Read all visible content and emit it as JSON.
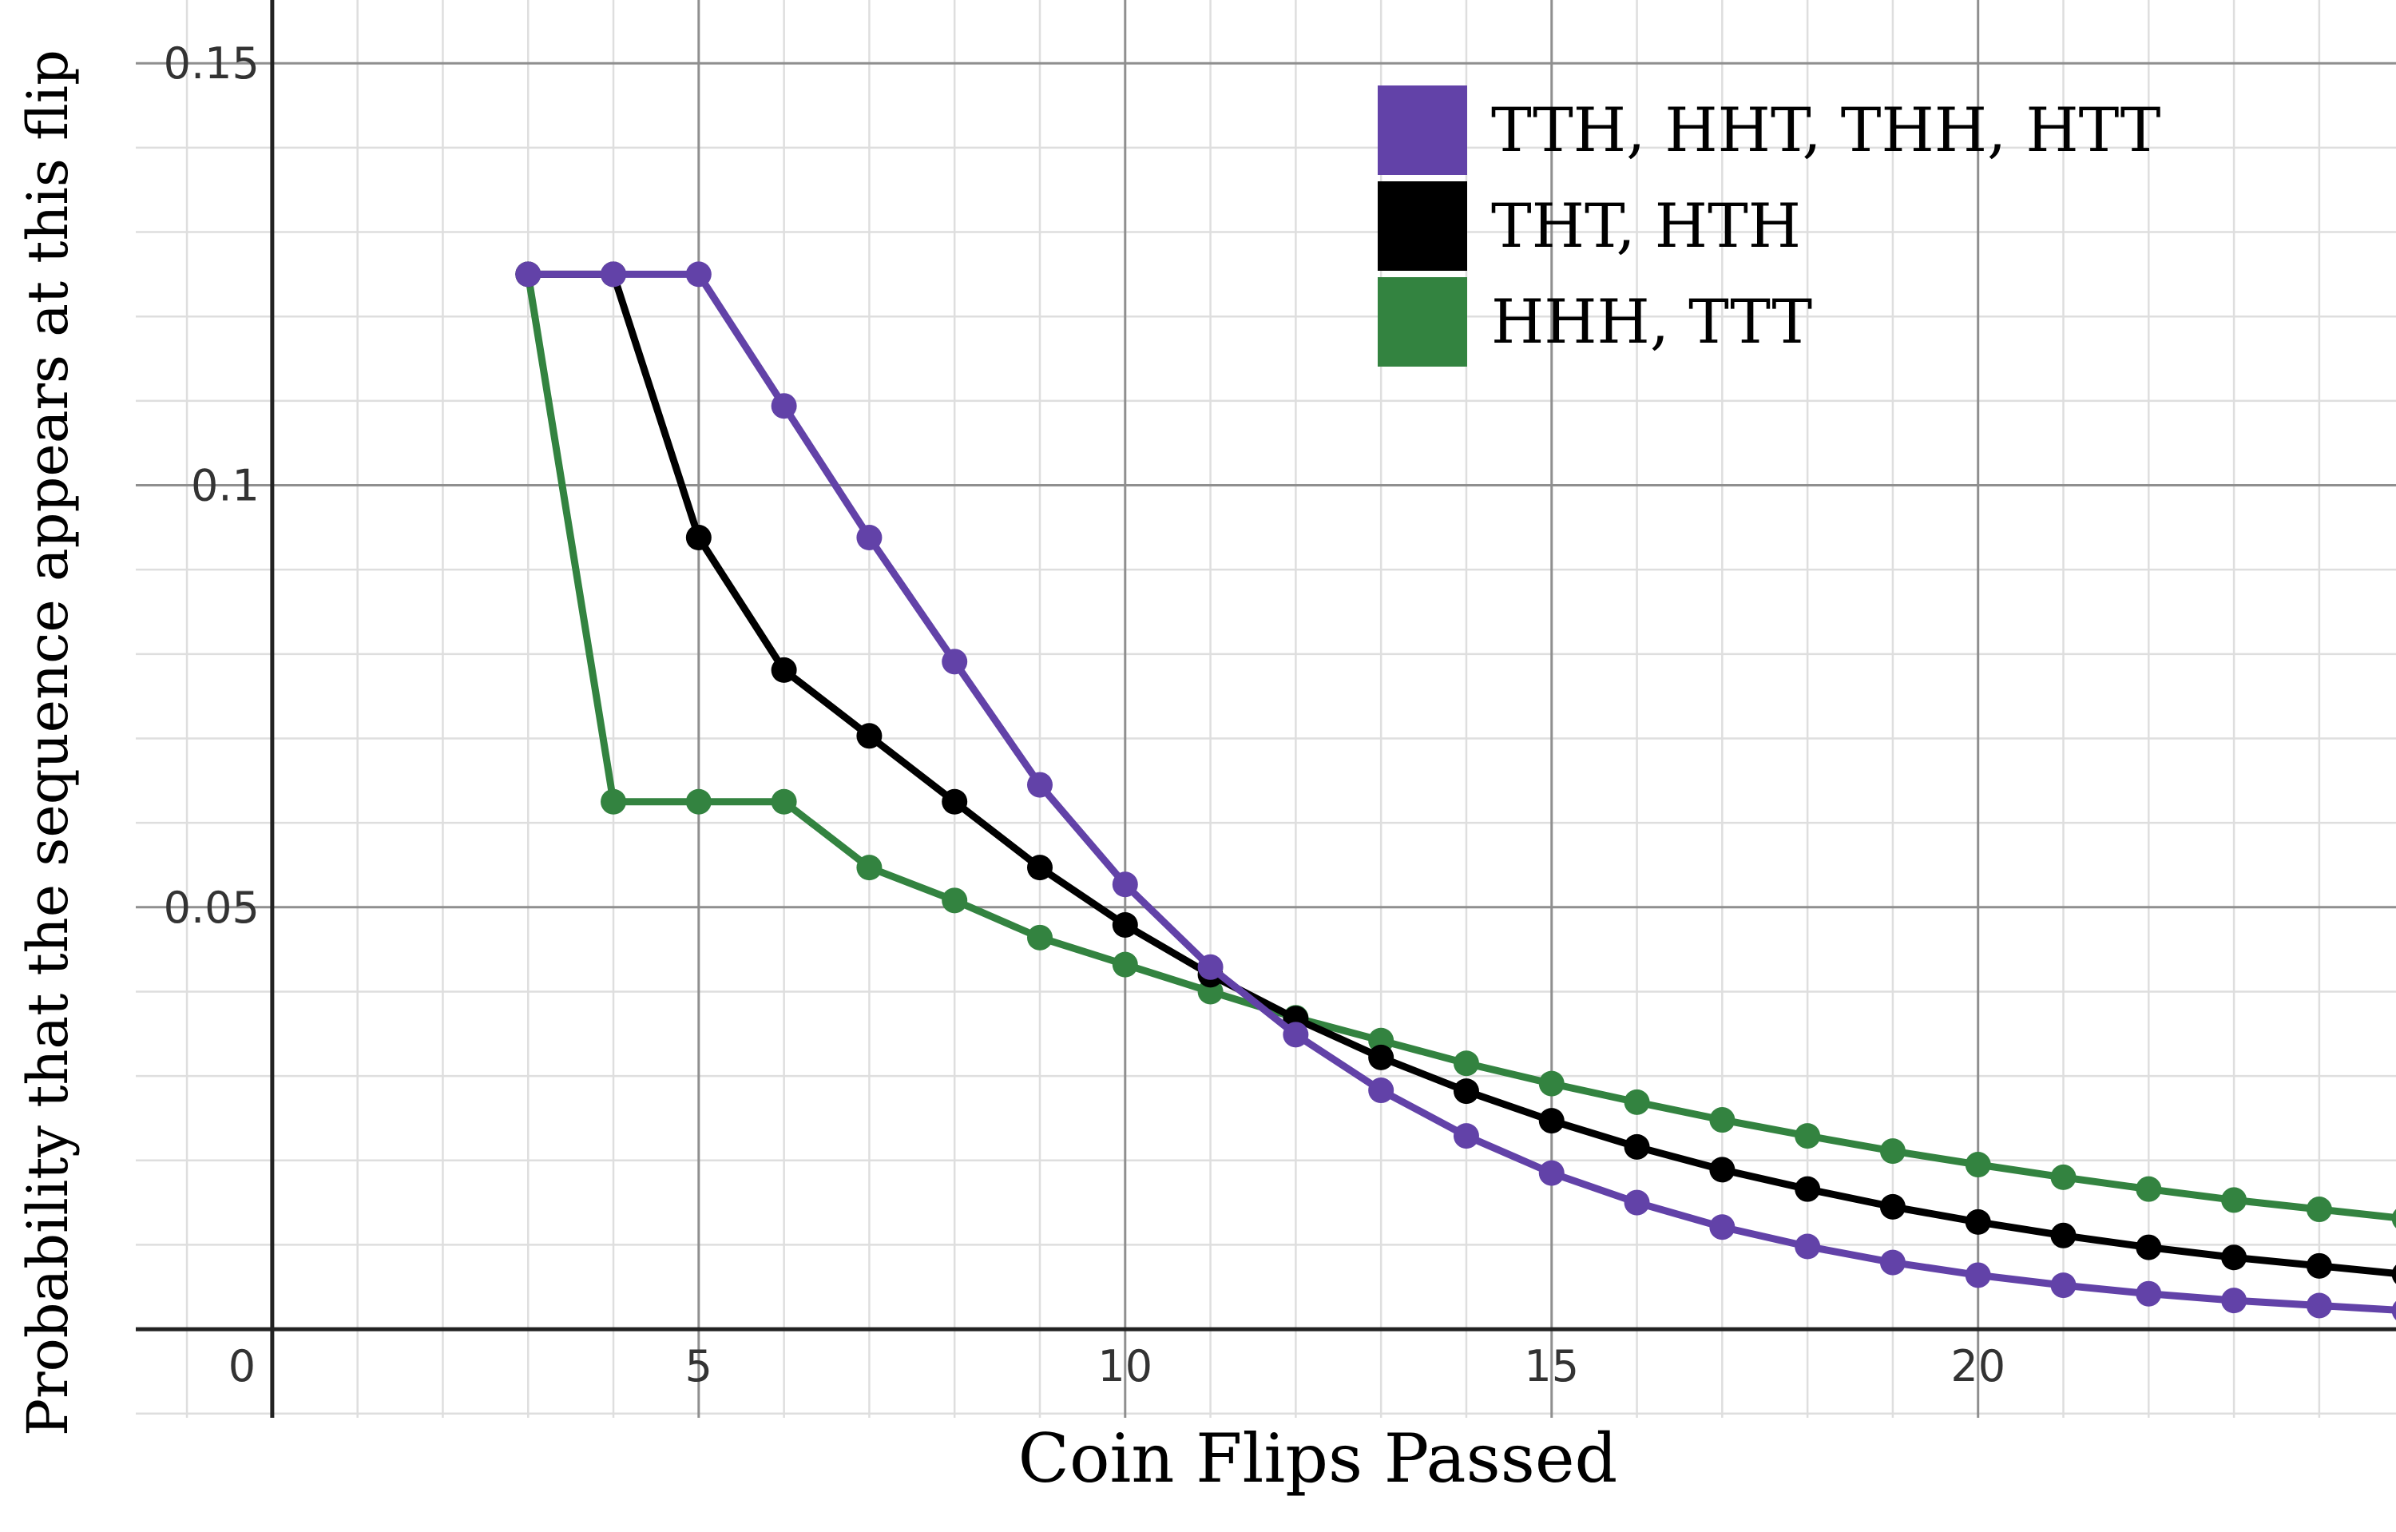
{
  "chart_data": {
    "type": "line",
    "title": "",
    "xlabel": "Coin Flips Passed",
    "ylabel": "Probability that the sequence appears at this flip",
    "xlim": [
      -1.6,
      24.9
    ],
    "ylim": [
      -0.0105,
      0.1575
    ],
    "x_ticks": [
      {
        "value": 0,
        "label": "0"
      },
      {
        "value": 5,
        "label": "5"
      },
      {
        "value": 10,
        "label": "10"
      },
      {
        "value": 15,
        "label": "15"
      },
      {
        "value": 20,
        "label": "20"
      }
    ],
    "y_ticks": [
      {
        "value": 0.05,
        "label": "0.05"
      },
      {
        "value": 0.1,
        "label": "0.1"
      },
      {
        "value": 0.15,
        "label": "0.15"
      }
    ],
    "grid": true,
    "legend_position": "top-right",
    "x": [
      3,
      4,
      5,
      6,
      7,
      8,
      9,
      10,
      11,
      12,
      13,
      14,
      15,
      16,
      17,
      18,
      19,
      20,
      21,
      22,
      23,
      24,
      25
    ],
    "series": [
      {
        "name": "TTH, HHT, THH, HTT",
        "color": "#6242a8",
        "values": [
          0.125,
          0.125,
          0.125,
          0.1094,
          0.0938,
          0.0791,
          0.0645,
          0.0527,
          0.0429,
          0.0349,
          0.0283,
          0.0229,
          0.0185,
          0.015,
          0.0121,
          0.0098,
          0.0079,
          0.0064,
          0.0052,
          0.0042,
          0.0034,
          0.0028,
          0.0022
        ]
      },
      {
        "name": "THT, HTH",
        "color": "#000000",
        "values": [
          0.125,
          0.125,
          0.0938,
          0.0781,
          0.0703,
          0.0625,
          0.0547,
          0.0479,
          0.042,
          0.0368,
          0.0322,
          0.0282,
          0.0247,
          0.0216,
          0.0189,
          0.0166,
          0.0145,
          0.0127,
          0.0111,
          0.0097,
          0.0085,
          0.0075,
          0.0065
        ]
      },
      {
        "name": "HHH, TTT",
        "color": "#338340",
        "values": [
          0.125,
          0.0625,
          0.0625,
          0.0625,
          0.0547,
          0.0508,
          0.0464,
          0.0432,
          0.04,
          0.0369,
          0.0342,
          0.0315,
          0.0291,
          0.0269,
          0.0248,
          0.0229,
          0.0211,
          0.0195,
          0.018,
          0.0166,
          0.0153,
          0.0142,
          0.0131
        ]
      }
    ]
  }
}
